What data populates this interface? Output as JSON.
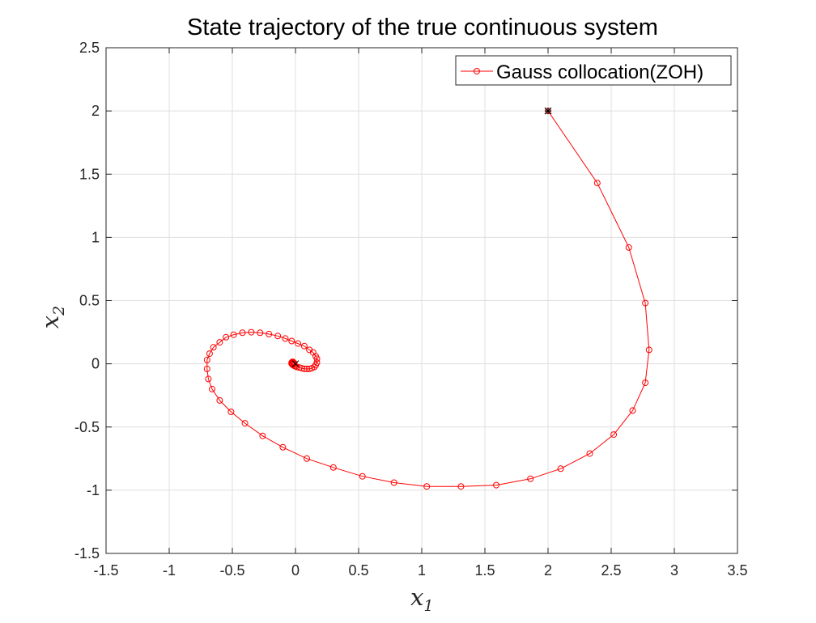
{
  "chart_data": {
    "type": "line",
    "title": "State trajectory of the true continuous system",
    "xlabel": "x",
    "xlabel_sub": "1",
    "ylabel": "x",
    "ylabel_sub": "2",
    "xlim": [
      -1.5,
      3.5
    ],
    "ylim": [
      -1.5,
      2.5
    ],
    "xticks": [
      -1.5,
      -1,
      -0.5,
      0,
      0.5,
      1,
      1.5,
      2,
      2.5,
      3,
      3.5
    ],
    "xtick_labels": [
      "-1.5",
      "-1",
      "-0.5",
      "0",
      "0.5",
      "1",
      "1.5",
      "2",
      "2.5",
      "3",
      "3.5"
    ],
    "yticks": [
      -1.5,
      -1,
      -0.5,
      0,
      0.5,
      1,
      1.5,
      2,
      2.5
    ],
    "ytick_labels": [
      "-1.5",
      "-1",
      "-0.5",
      "0",
      "0.5",
      "1",
      "1.5",
      "2",
      "2.5"
    ],
    "grid": true,
    "legend_position": "top-right",
    "series": [
      {
        "name": "Gauss collocation(ZOH)",
        "color": "#ff0000",
        "marker": "circle",
        "points": [
          [
            2.0,
            2.0
          ],
          [
            2.39,
            1.43
          ],
          [
            2.64,
            0.92
          ],
          [
            2.77,
            0.48
          ],
          [
            2.8,
            0.11
          ],
          [
            2.77,
            -0.15
          ],
          [
            2.67,
            -0.37
          ],
          [
            2.52,
            -0.56
          ],
          [
            2.33,
            -0.71
          ],
          [
            2.1,
            -0.83
          ],
          [
            1.86,
            -0.91
          ],
          [
            1.59,
            -0.96
          ],
          [
            1.31,
            -0.97
          ],
          [
            1.04,
            -0.97
          ],
          [
            0.78,
            -0.94
          ],
          [
            0.53,
            -0.89
          ],
          [
            0.3,
            -0.82
          ],
          [
            0.09,
            -0.75
          ],
          [
            -0.1,
            -0.66
          ],
          [
            -0.26,
            -0.57
          ],
          [
            -0.4,
            -0.47
          ],
          [
            -0.51,
            -0.38
          ],
          [
            -0.6,
            -0.29
          ],
          [
            -0.66,
            -0.2
          ],
          [
            -0.69,
            -0.12
          ],
          [
            -0.7,
            -0.04
          ],
          [
            -0.7,
            0.03
          ],
          [
            -0.68,
            0.08
          ],
          [
            -0.65,
            0.13
          ],
          [
            -0.6,
            0.17
          ],
          [
            -0.55,
            0.21
          ],
          [
            -0.49,
            0.23
          ],
          [
            -0.42,
            0.245
          ],
          [
            -0.35,
            0.25
          ],
          [
            -0.28,
            0.245
          ],
          [
            -0.21,
            0.235
          ],
          [
            -0.14,
            0.22
          ],
          [
            -0.08,
            0.2
          ],
          [
            -0.03,
            0.18
          ],
          [
            0.02,
            0.16
          ],
          [
            0.07,
            0.14
          ],
          [
            0.11,
            0.11
          ],
          [
            0.14,
            0.09
          ],
          [
            0.16,
            0.06
          ],
          [
            0.17,
            0.04
          ],
          [
            0.17,
            0.01
          ],
          [
            0.16,
            -0.01
          ],
          [
            0.15,
            -0.025
          ],
          [
            0.13,
            -0.035
          ],
          [
            0.11,
            -0.04
          ],
          [
            0.09,
            -0.04
          ],
          [
            0.07,
            -0.04
          ],
          [
            0.05,
            -0.035
          ],
          [
            0.03,
            -0.03
          ],
          [
            0.01,
            -0.025
          ],
          [
            0.0,
            -0.02
          ],
          [
            -0.01,
            -0.015
          ],
          [
            -0.02,
            -0.01
          ],
          [
            -0.025,
            -0.005
          ],
          [
            -0.03,
            0.0
          ],
          [
            -0.03,
            0.005
          ],
          [
            -0.03,
            0.01
          ],
          [
            -0.025,
            0.015
          ],
          [
            -0.02,
            0.015
          ],
          [
            -0.015,
            0.01
          ],
          [
            -0.01,
            0.005
          ]
        ]
      }
    ],
    "markers": [
      {
        "label": "start",
        "x": 2.0,
        "y": 2.0,
        "symbol": "asterisk",
        "color": "#000000"
      },
      {
        "label": "target",
        "x": 0.0,
        "y": 0.0,
        "symbol": "x",
        "color": "#000000"
      }
    ]
  }
}
